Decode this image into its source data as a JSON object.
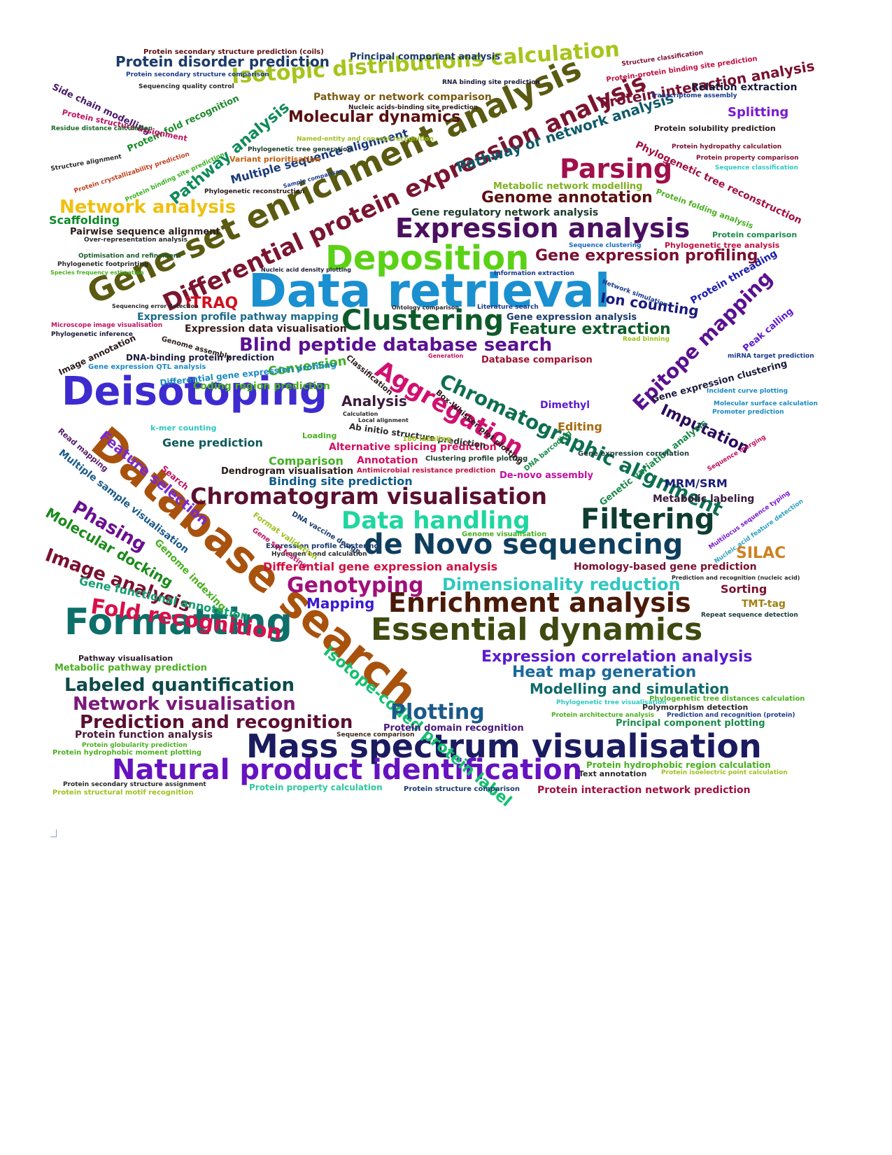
{
  "palette": {
    "background": "#ffffff",
    "teal": "#0e6f6a",
    "blue": "#1a90d0",
    "green": "#2fb82f",
    "olive": "#5a5a12",
    "maroon": "#7a1530",
    "purple": "#4b1070",
    "orange": "#a8520e",
    "navy": "#1b1b6f"
  },
  "words": [
    {
      "t": "Data retrieval",
      "c": "#1a90d0",
      "r": 0
    },
    {
      "t": "Database search",
      "c": "#a8520e",
      "r": 40
    },
    {
      "t": "Gene-set enrichment analysis",
      "c": "#5a5a12",
      "r": -25
    },
    {
      "t": "Mass spectrum visualisation",
      "c": "#1b1b60",
      "r": 0
    },
    {
      "t": "Deisotoping",
      "c": "#3d2bd0",
      "r": 0
    },
    {
      "t": "Formatting",
      "c": "#0e6f6a",
      "r": 0
    },
    {
      "t": "Essential dynamics",
      "c": "#3e4a10",
      "r": 0
    },
    {
      "t": "Natural product identification",
      "c": "#6612c0",
      "r": 0
    },
    {
      "t": "de Novo sequencing",
      "c": "#0e3e5e",
      "r": 0
    },
    {
      "t": "Differential protein expression analysis",
      "c": "#7a1530",
      "r": -25
    },
    {
      "t": "Deposition",
      "c": "#5bd116",
      "r": 0
    },
    {
      "t": "Expression analysis",
      "c": "#4b1060",
      "r": 0
    },
    {
      "t": "Isotopic distributions calculation",
      "c": "#a6c51c",
      "r": -4
    },
    {
      "t": "Clustering",
      "c": "#0e5a2a",
      "r": 0
    },
    {
      "t": "Filtering",
      "c": "#0e3c30",
      "r": 0
    },
    {
      "t": "Enrichment analysis",
      "c": "#4a1a08",
      "r": 0
    },
    {
      "t": "Chromatogram visualisation",
      "c": "#5a1030",
      "r": 0
    },
    {
      "t": "Aggregation",
      "c": "#d01070",
      "r": 30
    },
    {
      "t": "Parsing",
      "c": "#a0104a",
      "r": 0
    },
    {
      "t": "Chromatographic alignment",
      "c": "#0e6f50",
      "r": 25
    },
    {
      "t": "Epitope mapping",
      "c": "#5a1090",
      "r": -45
    },
    {
      "t": "Data handling",
      "c": "#1fd6a0",
      "r": 0
    },
    {
      "t": "Blind peptide database search",
      "c": "#5a1090",
      "r": 0
    },
    {
      "t": "Network analysis",
      "c": "#f0c010",
      "r": 0
    },
    {
      "t": "Fold recognition",
      "c": "#d8104a",
      "r": 8
    },
    {
      "t": "Image analysis",
      "c": "#7a1030",
      "r": 20
    },
    {
      "t": "Phasing",
      "c": "#6a1090",
      "r": 30
    },
    {
      "t": "Isotope-coded protein label",
      "c": "#12c070",
      "r": 40
    },
    {
      "t": "Feature selection",
      "c": "#7a2ad0",
      "r": 40
    },
    {
      "t": "Molecular docking",
      "c": "#1a8a1a",
      "r": 30
    },
    {
      "t": "Labeled quantification",
      "c": "#0e4a4a",
      "r": 0
    },
    {
      "t": "Network visualisation",
      "c": "#7a1a7a",
      "r": 0
    },
    {
      "t": "Prediction and recognition",
      "c": "#5a1030",
      "r": 0
    },
    {
      "t": "Plotting",
      "c": "#1a5a8a",
      "r": 0
    },
    {
      "t": "Genotyping",
      "c": "#a0107a",
      "r": 0
    },
    {
      "t": "Dimensionality reduction",
      "c": "#30c8c0",
      "r": 0
    },
    {
      "t": "Gene expression profiling",
      "c": "#7a1030",
      "r": 0
    },
    {
      "t": "Genome annotation",
      "c": "#5a1010",
      "r": 0
    },
    {
      "t": "Molecular dynamics",
      "c": "#5a1010",
      "r": 0
    },
    {
      "t": "Pathway analysis",
      "c": "#0e8a5a",
      "r": -40
    },
    {
      "t": "Protein disorder prediction",
      "c": "#1a3a6a",
      "r": 0
    },
    {
      "t": "Expression correlation analysis",
      "c": "#5a1ad0",
      "r": 0
    },
    {
      "t": "Heat map generation",
      "c": "#1a6a9a",
      "r": 0
    },
    {
      "t": "Modelling and simulation",
      "c": "#0e6a6a",
      "r": 0
    },
    {
      "t": "Feature extraction",
      "c": "#0e5a2a",
      "r": 0
    },
    {
      "t": "Imputation",
      "c": "#2a0a5a",
      "r": 25
    },
    {
      "t": "Ion counting",
      "c": "#1a1a7a",
      "r": 8
    },
    {
      "t": "Protein threading",
      "c": "#1a1ab0",
      "r": -30
    },
    {
      "t": "Pathway or network analysis",
      "c": "#0e5a6a",
      "r": -18
    },
    {
      "t": "Protein interaction analysis",
      "c": "#7a1030",
      "r": -10
    },
    {
      "t": "Phylogenetic tree reconstruction",
      "c": "#a01040",
      "r": 25
    },
    {
      "t": "iTRAQ",
      "c": "#d01020",
      "r": 0
    },
    {
      "t": "SILAC",
      "c": "#d08020",
      "r": 0
    },
    {
      "t": "MRM/SRM",
      "c": "#1a1a7a",
      "r": 0
    },
    {
      "t": "Sorting",
      "c": "#7a1030",
      "r": 0
    },
    {
      "t": "Splitting",
      "c": "#7a1ad0",
      "r": 0
    },
    {
      "t": "Scaffolding",
      "c": "#0e8a2a",
      "r": 0
    },
    {
      "t": "Mapping",
      "c": "#3a1ad0",
      "r": 0
    },
    {
      "t": "Analysis",
      "c": "#3a1a3a",
      "r": 0
    },
    {
      "t": "Conversion",
      "c": "#40b020",
      "r": -8
    },
    {
      "t": "Comparison",
      "c": "#40b020",
      "r": 0
    },
    {
      "t": "Editing",
      "c": "#a86a10",
      "r": 0
    },
    {
      "t": "Dimethyl",
      "c": "#5a1ad0",
      "r": 0
    },
    {
      "t": "Annotation",
      "c": "#d01060",
      "r": 0
    },
    {
      "t": "Gene prediction",
      "c": "#0e5a5a",
      "r": 0
    },
    {
      "t": "Binding site prediction",
      "c": "#0e5a8a",
      "r": 0
    },
    {
      "t": "Multiple sequence alignment",
      "c": "#1a3a7a",
      "r": -15
    },
    {
      "t": "Metabolic labeling",
      "c": "#3a1a3a",
      "r": 0
    },
    {
      "t": "TMT-tag",
      "c": "#a08010",
      "r": 0
    },
    {
      "t": "Gene functional annotation",
      "c": "#12a070",
      "r": 12
    },
    {
      "t": "Genome indexing",
      "c": "#4ab020",
      "r": 45
    },
    {
      "t": "Multiple sample visualisation",
      "c": "#1a5a8a",
      "r": 38
    },
    {
      "t": "Differential gene expression analysis",
      "c": "#d01040",
      "r": 0
    },
    {
      "t": "Homology-based gene prediction",
      "c": "#7a1030",
      "r": 0
    },
    {
      "t": "Protein domain recognition",
      "c": "#4a1a7a",
      "r": 0
    },
    {
      "t": "Protein function analysis",
      "c": "#4a1a3a",
      "r": 0
    },
    {
      "t": "Metabolic pathway prediction",
      "c": "#4ab020",
      "r": 0
    },
    {
      "t": "Pathway visualisation",
      "c": "#2a1a2a",
      "r": 0
    },
    {
      "t": "Principal component plotting",
      "c": "#1a8a4a",
      "r": 0
    },
    {
      "t": "Protein interaction network prediction",
      "c": "#a01040",
      "r": 0
    },
    {
      "t": "Protein hydrophobic region calculation",
      "c": "#4ab020",
      "r": 0
    },
    {
      "t": "Text annotation",
      "c": "#2a2a2a",
      "r": 0
    },
    {
      "t": "Polymorphism detection",
      "c": "#2a2a2a",
      "r": 0
    },
    {
      "t": "Phylogenetic tree distances calculation",
      "c": "#4ab020",
      "r": 0
    },
    {
      "t": "Gene regulatory network analysis",
      "c": "#1a3a2a",
      "r": 0
    },
    {
      "t": "Pairwise sequence alignment",
      "c": "#2a1a1a",
      "r": 0
    },
    {
      "t": "Metabolic network modelling",
      "c": "#80b020",
      "r": 0
    },
    {
      "t": "Protein fold recognition",
      "c": "#1a8a2a",
      "r": -25
    },
    {
      "t": "Side chain modelling",
      "c": "#4a1a6a",
      "r": 25
    },
    {
      "t": "Protein structure assignment",
      "c": "#c01060",
      "r": 12
    },
    {
      "t": "Principal component analysis",
      "c": "#1a3a6a",
      "r": 0
    },
    {
      "t": "Protein secondary structure prediction (coils)",
      "c": "#5a1010",
      "r": 0
    },
    {
      "t": "Relation extraction",
      "c": "#1a1a3a",
      "r": 0
    },
    {
      "t": "Pathway or network comparison",
      "c": "#7a5a10",
      "r": 0
    },
    {
      "t": "Expression profile pathway mapping",
      "c": "#1a6a8a",
      "r": 0
    },
    {
      "t": "Expression data visualisation",
      "c": "#3a1a1a",
      "r": 0
    },
    {
      "t": "Gene expression analysis",
      "c": "#1a3a6a",
      "r": 0
    },
    {
      "t": "Database comparison",
      "c": "#a01030",
      "r": 0
    },
    {
      "t": "Coding region prediction",
      "c": "#4ab020",
      "r": 0
    },
    {
      "t": "Alternative splicing prediction",
      "c": "#d01060",
      "r": 0
    },
    {
      "t": "Dendrogram visualisation",
      "c": "#2a1a1a",
      "r": 0
    },
    {
      "t": "Differential gene expression profiling",
      "c": "#1a8ac0",
      "r": -6
    },
    {
      "t": "DNA-binding protein prediction",
      "c": "#1a1a3a",
      "r": 0
    },
    {
      "t": "Image annotation",
      "c": "#2a1a1a",
      "r": -25
    },
    {
      "t": "Gene expression clustering",
      "c": "#1a1a3a",
      "r": -15
    },
    {
      "t": "Peak calling",
      "c": "#5a1ad0",
      "r": -40
    },
    {
      "t": "Genetic variation analysis",
      "c": "#1a8a4a",
      "r": -38
    },
    {
      "t": "Sequencing quality control",
      "c": "#2a2a2a",
      "r": 0
    },
    {
      "t": "Protein secondary structure comparison",
      "c": "#1a3a8a",
      "r": 0
    },
    {
      "t": "Protein hydropathy calculation",
      "c": "#7a1030",
      "r": 0
    },
    {
      "t": "Protein property comparison",
      "c": "#7a1030",
      "r": 0
    },
    {
      "t": "Sequence classification",
      "c": "#30c8c0",
      "r": 0
    },
    {
      "t": "Protein solubility prediction",
      "c": "#2a1a1a",
      "r": 0
    },
    {
      "t": "Transcriptome assembly",
      "c": "#1a3a8a",
      "r": 0
    },
    {
      "t": "Protein folding analysis",
      "c": "#4ab020",
      "r": 20
    },
    {
      "t": "Protein comparison",
      "c": "#1a8a4a",
      "r": 0
    },
    {
      "t": "Phylogenetic tree analysis",
      "c": "#c01040",
      "r": 0
    },
    {
      "t": "Residue distance calculation",
      "c": "#1a6a2a",
      "r": 0
    },
    {
      "t": "Variant prioritisation",
      "c": "#c06010",
      "r": 0
    },
    {
      "t": "Phylogenetic tree generation",
      "c": "#1a3a2a",
      "r": 0
    },
    {
      "t": "Phylogenetic reconstruction",
      "c": "#2a1a1a",
      "r": 0
    },
    {
      "t": "Protein binding site prediction",
      "c": "#3ab020",
      "r": -25
    },
    {
      "t": "Protein crystallizability prediction",
      "c": "#c04020",
      "r": -18
    },
    {
      "t": "Structure alignment",
      "c": "#2a2a2a",
      "r": -10
    },
    {
      "t": "Optimisation and refinement",
      "c": "#1a5a2a",
      "r": 0
    },
    {
      "t": "Phylogenetic footprinting",
      "c": "#2a2a2a",
      "r": 0
    },
    {
      "t": "Over-representation analysis",
      "c": "#2a2a2a",
      "r": 0
    },
    {
      "t": "Microscope image visualisation",
      "c": "#c01060",
      "r": 0
    },
    {
      "t": "Phylogenetic inference",
      "c": "#1a1a3a",
      "r": 0
    },
    {
      "t": "Gene expression QTL analysis",
      "c": "#1a8ac0",
      "r": 0
    },
    {
      "t": "Expression profile clustering",
      "c": "#1a3a6a",
      "r": 0
    },
    {
      "t": "Hydrogen bond calculation",
      "c": "#2a2a2a",
      "r": 0
    },
    {
      "t": "Antimicrobial resistance prediction",
      "c": "#c01040",
      "r": 0
    },
    {
      "t": "De-novo assembly",
      "c": "#c010a0",
      "r": 0
    },
    {
      "t": "Genome visualisation",
      "c": "#4ab020",
      "r": 0
    },
    {
      "t": "Protein structure comparison",
      "c": "#1a3a6a",
      "r": 0
    },
    {
      "t": "Protein property calculation",
      "c": "#30c8a0",
      "r": 0
    },
    {
      "t": "Protein structural motif recognition",
      "c": "#a0c020",
      "r": 0
    },
    {
      "t": "Protein secondary structure assignment",
      "c": "#2a2a2a",
      "r": 0
    },
    {
      "t": "Protein hydrophobic moment plotting",
      "c": "#4ab020",
      "r": 0
    },
    {
      "t": "Protein globularity prediction",
      "c": "#4ab020",
      "r": 0
    },
    {
      "t": "Sequence comparison",
      "c": "#3a2a1a",
      "r": 0
    },
    {
      "t": "Information extraction",
      "c": "#1a3a8a",
      "r": 0
    },
    {
      "t": "Sequence clustering",
      "c": "#1a6ac0",
      "r": 0
    },
    {
      "t": "Protein isoelectric point calculation",
      "c": "#a0c020",
      "r": 0
    },
    {
      "t": "Prediction and recognition (protein)",
      "c": "#1a3a8a",
      "r": 0
    },
    {
      "t": "Protein architecture analysis",
      "c": "#4ab020",
      "r": 0
    },
    {
      "t": "Phylogenetic tree visualisation",
      "c": "#30c8c0",
      "r": 0
    },
    {
      "t": "Promoter prediction",
      "c": "#1a8ac0",
      "r": 0
    },
    {
      "t": "Molecular surface calculation",
      "c": "#1a8ac0",
      "r": 0
    },
    {
      "t": "Incident curve plotting",
      "c": "#1a8ac0",
      "r": 0
    },
    {
      "t": "miRNA target prediction",
      "c": "#1a3a8a",
      "r": 0
    },
    {
      "t": "Nucleic acid feature detection",
      "c": "#30a0c0",
      "r": -35
    },
    {
      "t": "Multilocus sequence typing",
      "c": "#7a1ad0",
      "r": -35
    },
    {
      "t": "Sequence merging",
      "c": "#c01060",
      "r": -30
    },
    {
      "t": "Repeat sequence detection",
      "c": "#1a3a3a",
      "r": 0
    },
    {
      "t": "Prediction and recognition (nucleic acid)",
      "c": "#2a2a2a",
      "r": 0
    },
    {
      "t": "Ab initio structure prediction",
      "c": "#2a2a2a",
      "r": 8
    },
    {
      "t": "Clustering profile plotting",
      "c": "#1a3a2a",
      "r": 0
    },
    {
      "t": "Box-Whisker plot plotting",
      "c": "#2a1a1a",
      "r": 40
    },
    {
      "t": "Classification",
      "c": "#2a1a1a",
      "r": 40
    },
    {
      "t": "Read mapping",
      "c": "#5a1a6a",
      "r": 40
    },
    {
      "t": "Search",
      "c": "#c01060",
      "r": 40
    },
    {
      "t": "k-mer counting",
      "c": "#30c8c0",
      "r": 0
    },
    {
      "t": "Gene expression correlation",
      "c": "#1a3a3a",
      "r": 0
    },
    {
      "t": "DNA barcoding",
      "c": "#1a8a4a",
      "r": -40
    },
    {
      "t": "Format validation",
      "c": "#a0c020",
      "r": 35
    },
    {
      "t": "Nucleic acid density plotting",
      "c": "#1a1a3a",
      "r": 0
    },
    {
      "t": "Sequencing error detection",
      "c": "#2a2a2a",
      "r": 0
    },
    {
      "t": "Structure classification",
      "c": "#7a1030",
      "r": -8
    },
    {
      "t": "Protein-protein binding site prediction",
      "c": "#c01040",
      "r": -8
    },
    {
      "t": "Named-entity and concept recognition",
      "c": "#a0c020",
      "r": 0
    },
    {
      "t": "RNA binding site prediction",
      "c": "#1a1a3a",
      "r": 0
    },
    {
      "t": "Nucleic acids-binding site prediction",
      "c": "#2a1a1a",
      "r": 0
    },
    {
      "t": "Sample comparison",
      "c": "#1a3a8a",
      "r": -15
    },
    {
      "t": "Gene set testing",
      "c": "#c01060",
      "r": 35
    },
    {
      "t": "180 labeling",
      "c": "#a0c020",
      "r": 0
    },
    {
      "t": "Literature search",
      "c": "#1a3a8a",
      "r": 0
    },
    {
      "t": "Ontology comparison",
      "c": "#2a2a2a",
      "r": 0
    },
    {
      "t": "Local alignment",
      "c": "#2a2a2a",
      "r": 0
    },
    {
      "t": "Calculation",
      "c": "#2a2a2a",
      "r": 0
    },
    {
      "t": "Loading",
      "c": "#4ab020",
      "r": 0
    },
    {
      "t": "Generation",
      "c": "#c01060",
      "r": 0
    },
    {
      "t": "Genome assembly",
      "c": "#2a1a1a",
      "r": 15
    },
    {
      "t": "Read binning",
      "c": "#a0c020",
      "r": 0
    },
    {
      "t": "Network simulation",
      "c": "#1a3a8a",
      "r": 20
    },
    {
      "t": "Species frequency estimation",
      "c": "#4ab020",
      "r": 0
    },
    {
      "t": "DNA vaccine design",
      "c": "#1a3a6a",
      "r": 30
    }
  ]
}
